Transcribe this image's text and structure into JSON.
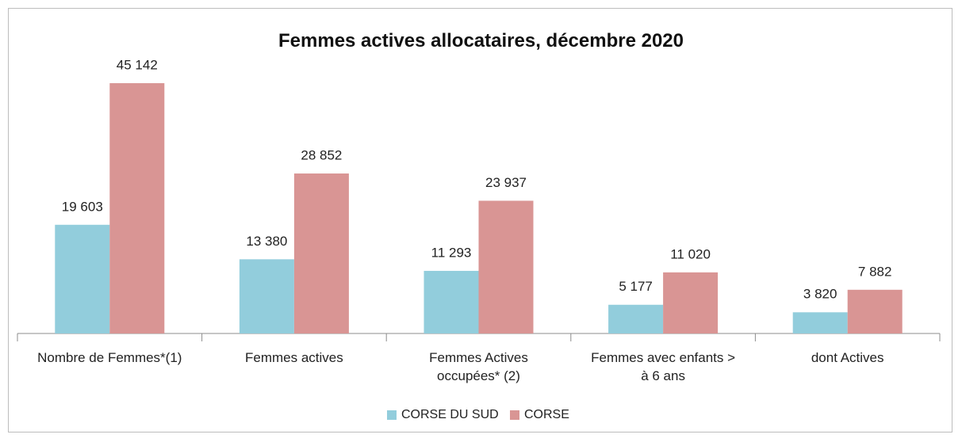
{
  "chart_data": {
    "type": "bar",
    "title": "Femmes actives allocataires, décembre 2020",
    "categories": [
      "Nombre de Femmes*(1)",
      "Femmes actives",
      "Femmes Actives\noccupées* (2)",
      "Femmes avec enfants >\nà 6 ans",
      "dont Actives"
    ],
    "series": [
      {
        "name": "CORSE DU SUD",
        "color": "#92cddc",
        "values": [
          19603,
          13380,
          11293,
          5177,
          3820
        ],
        "value_labels": [
          "19 603",
          "13 380",
          "11 293",
          "5 177",
          "3 820"
        ]
      },
      {
        "name": "CORSE",
        "color": "#d99594",
        "values": [
          45142,
          28852,
          23937,
          11020,
          7882
        ],
        "value_labels": [
          "45 142",
          "28 852",
          "23 937",
          "11 020",
          "7 882"
        ]
      }
    ],
    "legend": "bottom"
  }
}
